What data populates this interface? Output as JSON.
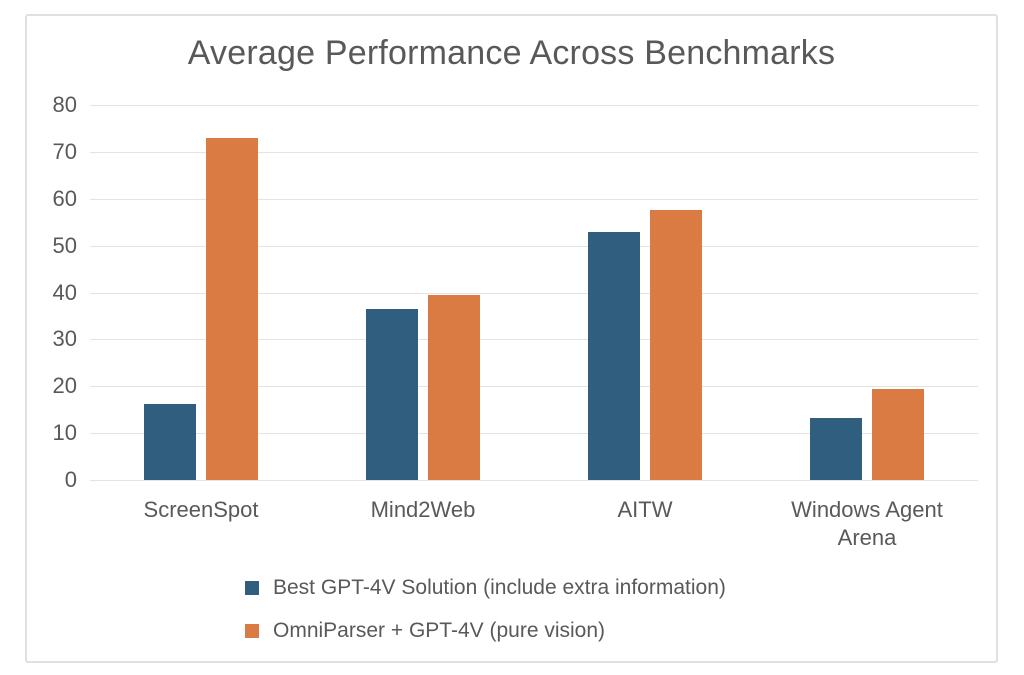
{
  "chart_data": {
    "type": "bar",
    "title": "Average Performance Across Benchmarks",
    "categories": [
      "ScreenSpot",
      "Mind2Web",
      "AITW",
      "Windows Agent Arena"
    ],
    "series": [
      {
        "name": "Best GPT-4V Solution (include extra information)",
        "color": "#2F5E7E",
        "values": [
          16.2,
          36.5,
          53.0,
          13.3
        ]
      },
      {
        "name": "OmniParser + GPT-4V (pure vision)",
        "color": "#D97B43",
        "values": [
          73.0,
          39.4,
          57.7,
          19.5
        ]
      }
    ],
    "xlabel": "",
    "ylabel": "",
    "ylim": [
      0,
      80
    ],
    "ytick_step": 10,
    "grid": "horizontal",
    "legend_position": "bottom",
    "colors": {
      "text": "#595959",
      "gridline": "#E3E3E3",
      "frame_border": "#E0E0E0",
      "background": "#FFFFFF"
    }
  }
}
